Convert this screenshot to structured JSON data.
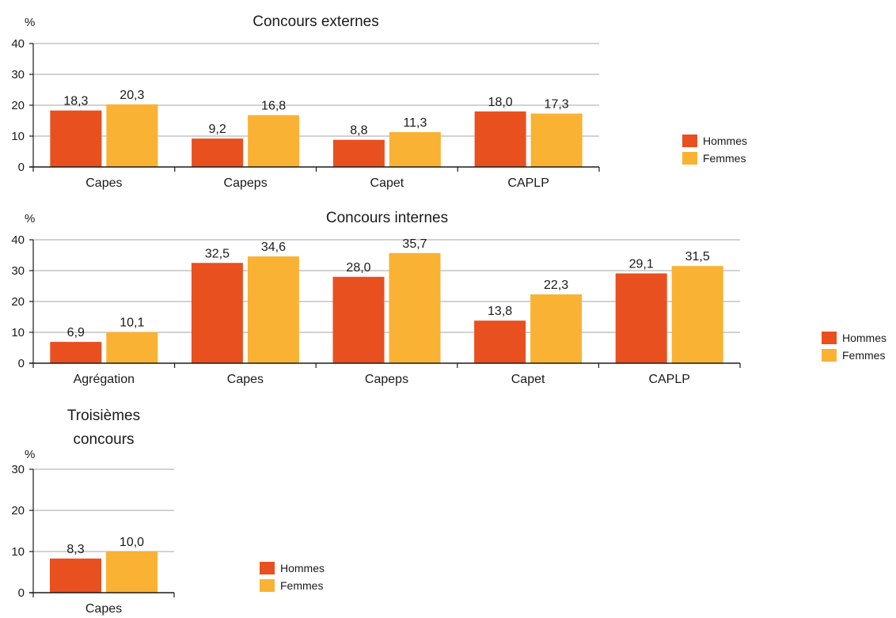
{
  "colors": {
    "hommes": "#e8501f",
    "femmes": "#f9b233",
    "grid": "#a6a6a6",
    "axis": "#1a1a1a"
  },
  "chart_data": [
    {
      "type": "bar",
      "title": "Concours externes",
      "ylabel": "%",
      "ylim": [
        0,
        40
      ],
      "yticks": [
        "0",
        "10",
        "20",
        "30",
        "40"
      ],
      "categories": [
        "Capes",
        "Capeps",
        "Capet",
        "CAPLP"
      ],
      "series": [
        {
          "name": "Hommes",
          "values": [
            18.3,
            9.2,
            8.8,
            18.0
          ],
          "labels": [
            "18,3",
            "9,2",
            "8,8",
            "18,0"
          ]
        },
        {
          "name": "Femmes",
          "values": [
            20.3,
            16.8,
            11.3,
            17.3
          ],
          "labels": [
            "20,3",
            "16,8",
            "11,3",
            "17,3"
          ]
        }
      ],
      "legend": [
        "Hommes",
        "Femmes"
      ]
    },
    {
      "type": "bar",
      "title": "Concours internes",
      "ylabel": "%",
      "ylim": [
        0,
        40
      ],
      "yticks": [
        "0",
        "10",
        "20",
        "30",
        "40"
      ],
      "categories": [
        "Agrégation",
        "Capes",
        "Capeps",
        "Capet",
        "CAPLP"
      ],
      "series": [
        {
          "name": "Hommes",
          "values": [
            6.9,
            32.5,
            28.0,
            13.8,
            29.1
          ],
          "labels": [
            "6,9",
            "32,5",
            "28,0",
            "13,8",
            "29,1"
          ]
        },
        {
          "name": "Femmes",
          "values": [
            10.1,
            34.6,
            35.7,
            22.3,
            31.5
          ],
          "labels": [
            "10,1",
            "34,6",
            "35,7",
            "22,3",
            "31,5"
          ]
        }
      ],
      "legend": [
        "Hommes",
        "Femmes"
      ]
    },
    {
      "type": "bar",
      "title": [
        "Troisièmes",
        "concours"
      ],
      "ylabel": "%",
      "ylim": [
        0,
        30
      ],
      "yticks": [
        "0",
        "10",
        "20",
        "30"
      ],
      "categories": [
        "Capes"
      ],
      "series": [
        {
          "name": "Hommes",
          "values": [
            8.3
          ],
          "labels": [
            "8,3"
          ]
        },
        {
          "name": "Femmes",
          "values": [
            10.0
          ],
          "labels": [
            "10,0"
          ]
        }
      ],
      "legend": [
        "Hommes",
        "Femmes"
      ]
    }
  ]
}
